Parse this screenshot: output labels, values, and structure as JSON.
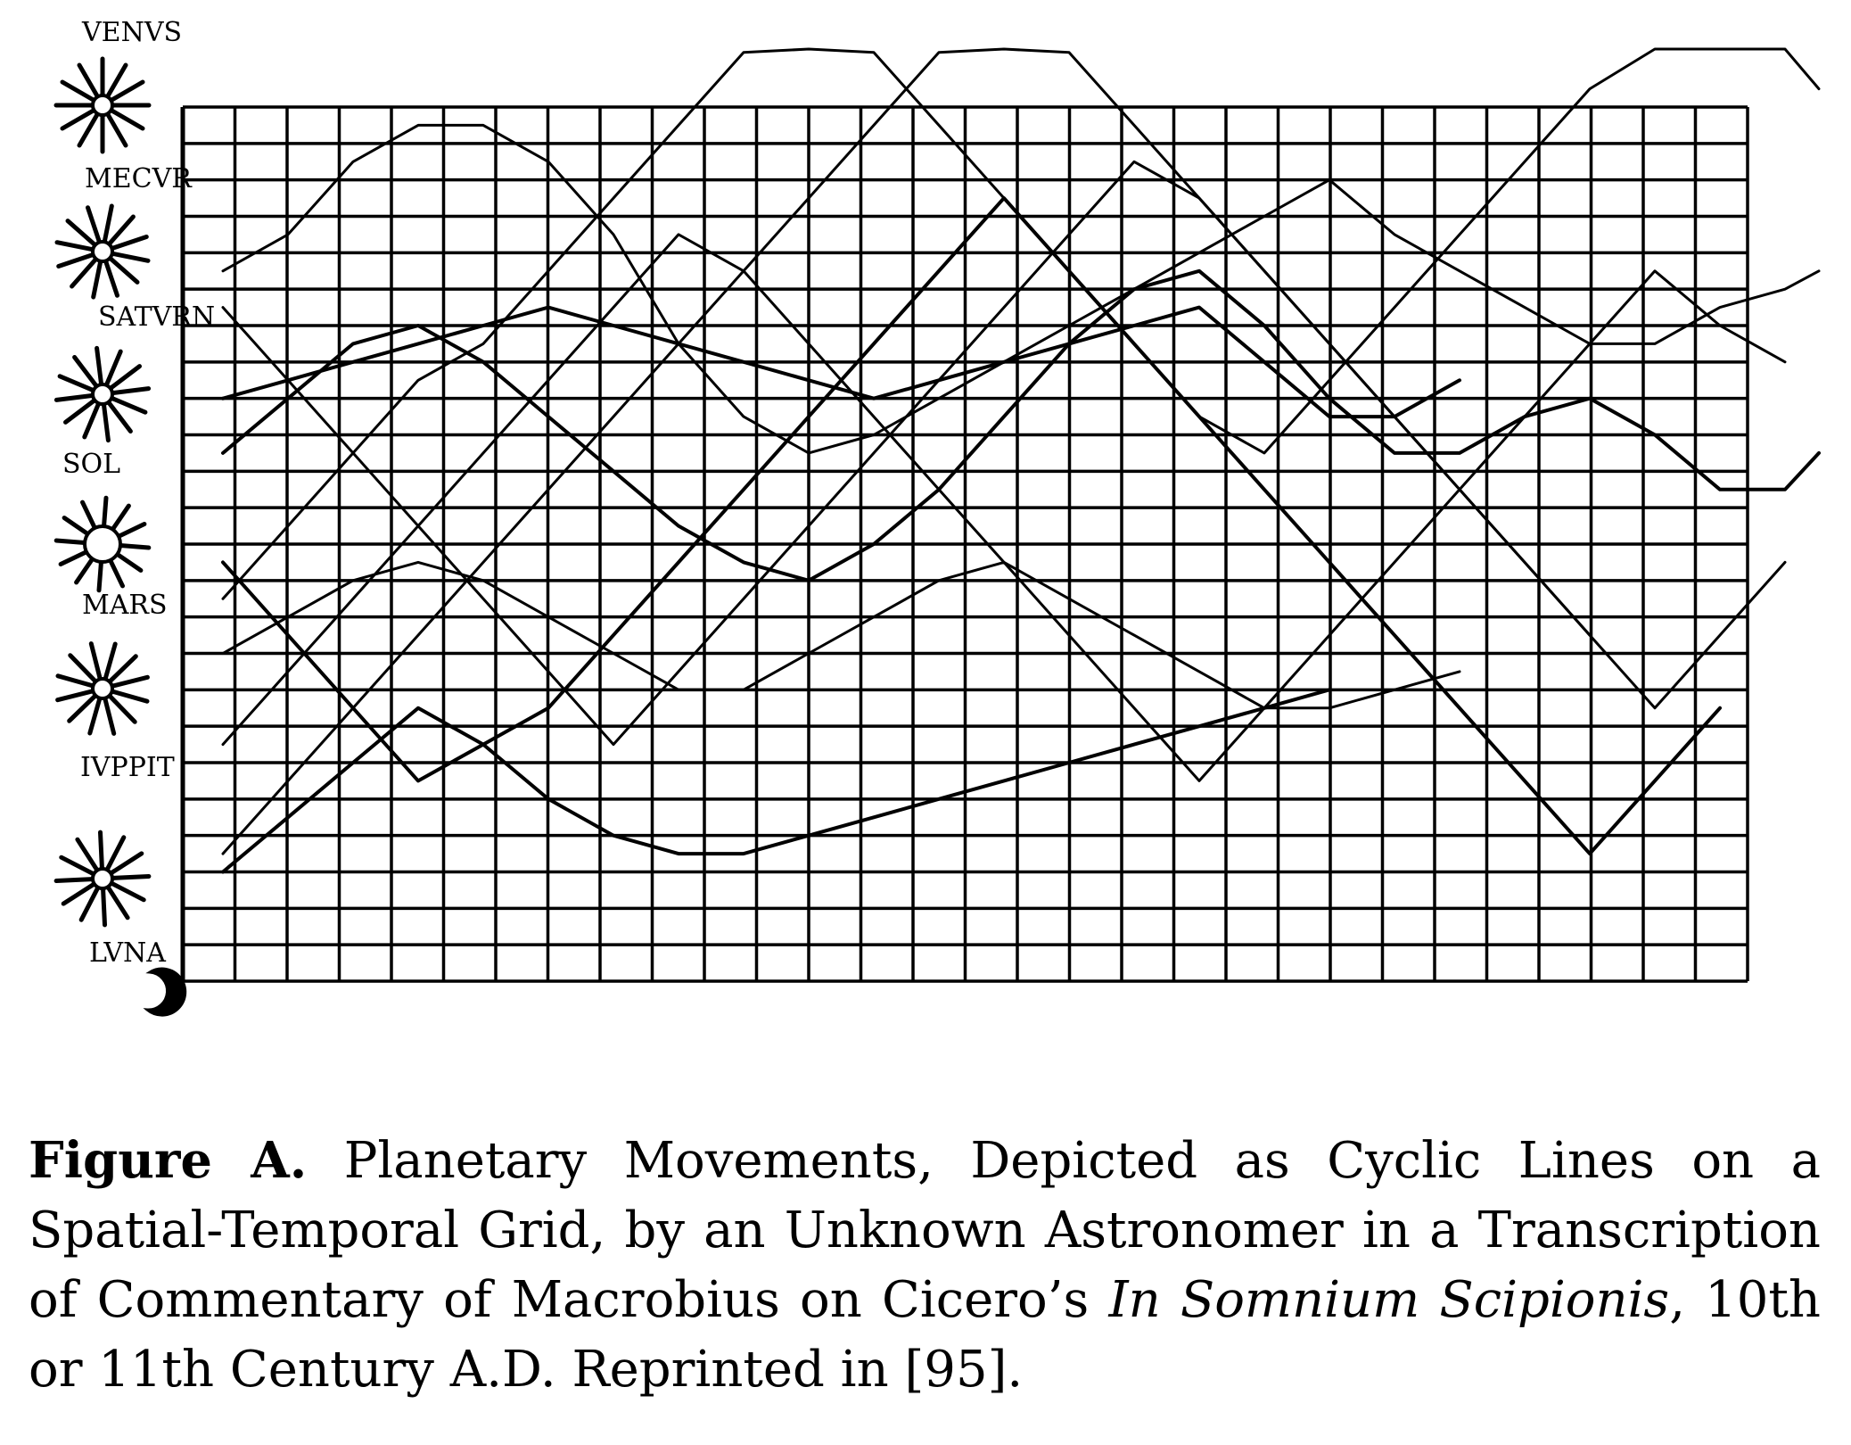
{
  "chart_data": {
    "type": "line",
    "planet_labels": [
      "VENVS",
      "MECVR",
      "SATVRN",
      "SOL",
      "MARS",
      "IVPPIT",
      "LVNA"
    ],
    "grid": true,
    "series": [
      {
        "values": [
          11.5,
          9.5,
          7.5,
          5.5,
          6.5,
          7.5,
          9.5,
          11.5,
          13.5,
          15.5,
          17.5,
          19.5,
          21.5,
          19.5,
          17.5,
          15.5,
          13.5,
          11.5,
          9.5,
          7.5,
          5.5,
          3.5,
          5.5,
          7.5
        ]
      },
      {
        "values": [
          10.5,
          12.5,
          14.5,
          16.5,
          17.5,
          19.5,
          21.5,
          23.5,
          25.5,
          27.5,
          25.5,
          23.5,
          21.5,
          19.5,
          17.5,
          15.5,
          14.5,
          16.5,
          18.5,
          20.5,
          22.5,
          24.5,
          26.5,
          28.5,
          26.5,
          24.5
        ]
      },
      {
        "values": [
          19.5,
          20.5,
          22.5,
          23.5,
          23.5,
          22.5,
          20.5,
          17.5,
          15.5,
          14.5,
          15.0,
          16.0,
          17.0,
          18.0,
          19.0,
          20.0,
          21.0,
          22.0,
          20.5,
          19.5,
          18.5,
          17.5,
          17.5,
          18.5,
          19.0,
          19.5
        ]
      },
      {
        "values": [
          14.5,
          16.0,
          17.5,
          18.0,
          17.0,
          15.5,
          14.0,
          12.5,
          11.5,
          11.0,
          12.0,
          13.5,
          15.5,
          17.5,
          19.0,
          19.5,
          18.0,
          16.0,
          14.5,
          14.5,
          15.5,
          16.0,
          15.0,
          13.5,
          13.5,
          14.5
        ]
      },
      {
        "values": [
          18.5,
          16.5,
          14.5,
          12.5,
          10.5,
          8.5,
          6.5,
          8.5,
          10.5,
          12.5,
          14.5,
          16.5,
          18.5,
          20.5,
          22.5,
          21.5,
          19.5,
          17.5,
          15.5,
          13.5,
          11.5,
          9.5,
          7.5,
          9.5,
          11.5
        ]
      },
      {
        "values": [
          6.5,
          8.5,
          10.5,
          12.5,
          14.5,
          16.5,
          18.5,
          20.5,
          19.5,
          17.5,
          15.5,
          13.5,
          11.5,
          9.5,
          7.5,
          5.5,
          7.5,
          9.5,
          11.5,
          13.5,
          15.5,
          17.5,
          19.5,
          18.0,
          17.0
        ]
      },
      {
        "values": [
          16.0,
          16.5,
          17.0,
          17.5,
          18.0,
          18.5,
          18.0,
          17.5,
          17.0,
          16.5,
          16.0,
          16.5,
          17.0,
          17.5,
          18.0,
          18.5,
          17.0,
          15.5,
          15.5,
          16.5
        ]
      },
      {
        "values": [
          3.5,
          5.5,
          7.5,
          9.5,
          11.5,
          13.5,
          15.5,
          17.5,
          19.5,
          21.5,
          23.5,
          25.5,
          27.5,
          25.5,
          23.5,
          21.5,
          19.5,
          17.5,
          15.5,
          13.5,
          11.5,
          9.5
        ]
      },
      {
        "values": [
          9.0,
          10.0,
          11.0,
          11.5,
          11.0,
          10.0,
          9.0,
          8.0,
          8.0,
          9.0,
          10.0,
          11.0,
          11.5,
          10.5,
          9.5,
          8.5,
          7.5,
          7.5,
          8.0,
          8.5
        ]
      },
      {
        "values": [
          3.0,
          4.5,
          6.0,
          7.5,
          6.5,
          5.0,
          4.0,
          3.5,
          3.5,
          4.0,
          4.5,
          5.0,
          5.5,
          6.0,
          6.5,
          7.0,
          7.5,
          8.0
        ]
      }
    ]
  },
  "caption": {
    "label": "Figure A.",
    "text1": " Planetary Movements, Depicted as Cyclic Lines on a Spatial-Temporal Grid, by an Unknown Astronomer in a Transcription of Commentary of Macrobius on Cicero’s ",
    "italic1": "In Somnium Scipionis",
    "text2": ", 10th or 11th Century A.D. Reprinted in [95]."
  }
}
